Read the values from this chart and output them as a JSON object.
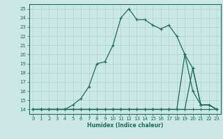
{
  "background_color": "#cce8e4",
  "grid_color": "#aad4cc",
  "line_color": "#1a6b60",
  "xlabel": "Humidex (Indice chaleur)",
  "xlim": [
    -0.5,
    23.5
  ],
  "ylim": [
    13.5,
    25.5
  ],
  "xticks": [
    0,
    1,
    2,
    3,
    4,
    5,
    6,
    7,
    8,
    9,
    10,
    11,
    12,
    13,
    14,
    15,
    16,
    17,
    18,
    19,
    20,
    21,
    22,
    23
  ],
  "yticks": [
    14,
    15,
    16,
    17,
    18,
    19,
    20,
    21,
    22,
    23,
    24,
    25
  ],
  "curve1_x": [
    0,
    1,
    2,
    3,
    4,
    5,
    6,
    7,
    8,
    9,
    10,
    11,
    12,
    13,
    14,
    15,
    16,
    17,
    18,
    19,
    20,
    21,
    22,
    23
  ],
  "curve1_y": [
    14,
    14,
    14,
    14,
    14,
    14,
    14,
    14,
    14,
    14,
    14,
    14,
    14,
    14,
    14,
    14,
    14,
    14,
    14,
    14,
    14,
    14,
    14,
    14
  ],
  "curve2_x": [
    0,
    1,
    2,
    3,
    4,
    5,
    6,
    7,
    8,
    9,
    10,
    11,
    12,
    13,
    14,
    15,
    16,
    17,
    18,
    19,
    20,
    21,
    22,
    23
  ],
  "curve2_y": [
    14,
    14,
    14,
    14,
    14,
    14,
    14,
    14,
    14,
    14,
    14,
    14,
    14,
    14,
    14,
    14,
    14,
    14,
    14,
    20,
    18.5,
    14.5,
    14.5,
    14
  ],
  "curve3_x": [
    0,
    1,
    2,
    3,
    4,
    5,
    6,
    7,
    8,
    9,
    10,
    11,
    12,
    13,
    14,
    15,
    16,
    17,
    18,
    19,
    20,
    21,
    22,
    23
  ],
  "curve3_y": [
    14,
    14,
    14,
    14,
    14,
    14.5,
    15.2,
    16.5,
    19,
    19.2,
    21,
    24,
    25,
    23.8,
    23.8,
    23.2,
    22.8,
    23.2,
    22.0,
    20,
    16,
    14.5,
    14.5,
    14
  ],
  "curve4_x": [
    0,
    1,
    2,
    3,
    4,
    5,
    6,
    7,
    8,
    9,
    10,
    11,
    12,
    13,
    14,
    15,
    16,
    17,
    18,
    19,
    20,
    21,
    22,
    23
  ],
  "curve4_y": [
    14,
    14,
    14,
    14,
    14,
    14,
    14,
    14,
    14,
    14,
    14,
    14,
    14,
    14,
    14,
    14,
    14,
    14,
    14,
    14,
    18.5,
    14.5,
    14.5,
    14
  ],
  "marker": "+"
}
